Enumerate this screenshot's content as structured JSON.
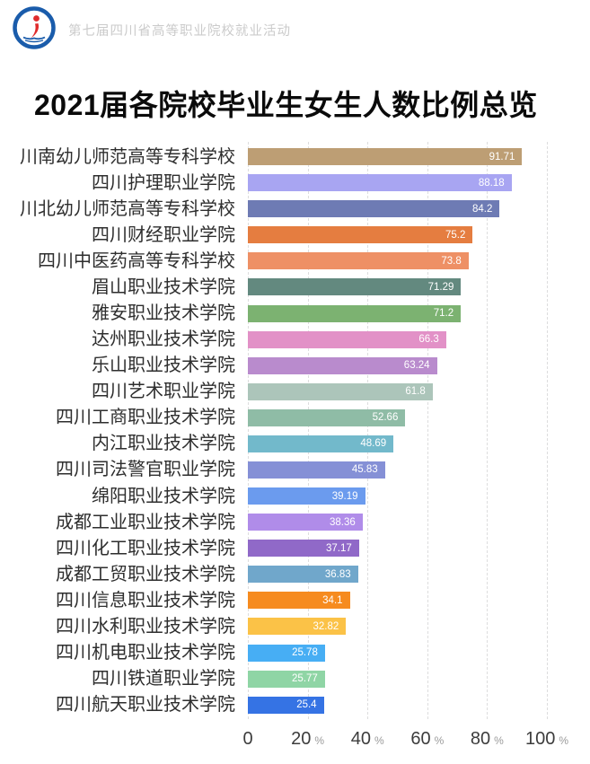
{
  "header": {
    "event_title": "第七届四川省高等职业院校就业活动"
  },
  "page_title": "2021届各院校毕业生女生人数比例总览",
  "chart_data": {
    "type": "bar",
    "orientation": "horizontal",
    "title": "2021届各院校毕业生女生人数比例总览",
    "xlabel": "",
    "ylabel": "",
    "xlim": [
      0,
      100
    ],
    "x_ticks": [
      0,
      20,
      40,
      60,
      80,
      100
    ],
    "x_tick_unit": "%",
    "grid": "vertical-dashed",
    "legend": "none",
    "value_label_position": "inside-end",
    "categories": [
      "川南幼儿师范高等专科学校",
      "四川护理职业学院",
      "川北幼儿师范高等专科学校",
      "四川财经职业学院",
      "四川中医药高等专科学校",
      "眉山职业技术学院",
      "雅安职业技术学院",
      "达州职业技术学院",
      "乐山职业技术学院",
      "四川艺术职业学院",
      "四川工商职业技术学院",
      "内江职业技术学院",
      "四川司法警官职业学院",
      "绵阳职业技术学院",
      "成都工业职业技术学院",
      "四川化工职业技术学院",
      "成都工贸职业技术学院",
      "四川信息职业技术学院",
      "四川水利职业技术学院",
      "四川机电职业技术学院",
      "四川铁道职业学院",
      "四川航天职业技术学院"
    ],
    "values": [
      91.71,
      88.18,
      84.2,
      75.2,
      73.8,
      71.29,
      71.2,
      66.3,
      63.24,
      61.8,
      52.66,
      48.69,
      45.83,
      39.19,
      38.36,
      37.17,
      36.83,
      34.1,
      32.82,
      25.78,
      25.77,
      25.4
    ],
    "colors": [
      "#BD9E74",
      "#A8A5F2",
      "#6E7BB4",
      "#E57D40",
      "#EE9065",
      "#63897F",
      "#7CB271",
      "#E291C7",
      "#B98BCD",
      "#ACC5BA",
      "#8FBCA6",
      "#72B9CB",
      "#8590D6",
      "#6B9BEE",
      "#B08CE9",
      "#9069C8",
      "#70A7CB",
      "#F68B1F",
      "#FBC247",
      "#47AEF4",
      "#8FD5A5",
      "#3573E4"
    ]
  },
  "colors": {
    "background": "#ffffff",
    "title_text": "#0a0a0a",
    "header_text": "#cbcbcb",
    "category_text": "#2e2e2e",
    "axis_number": "#3c3c3c",
    "axis_unit": "#9a9a9a",
    "gridline": "#ddddde",
    "value_text": "#ffffff",
    "logo_blue": "#1a5cab",
    "logo_red": "#e02b2b"
  }
}
